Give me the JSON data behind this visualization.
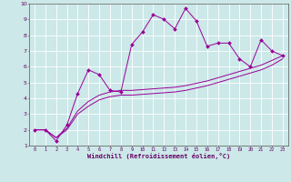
{
  "title": "",
  "xlabel": "Windchill (Refroidissement éolien,°C)",
  "ylabel": "",
  "xlim": [
    -0.5,
    23.5
  ],
  "ylim": [
    1,
    10
  ],
  "xticks": [
    0,
    1,
    2,
    3,
    4,
    5,
    6,
    7,
    8,
    9,
    10,
    11,
    12,
    13,
    14,
    15,
    16,
    17,
    18,
    19,
    20,
    21,
    22,
    23
  ],
  "yticks": [
    1,
    2,
    3,
    4,
    5,
    6,
    7,
    8,
    9,
    10
  ],
  "bg_color": "#cce8e8",
  "line_color": "#990099",
  "grid_color": "#ffffff",
  "series1_x": [
    0,
    1,
    2,
    3,
    4,
    5,
    6,
    7,
    8,
    9,
    10,
    11,
    12,
    13,
    14,
    15,
    16,
    17,
    18,
    19,
    20,
    21,
    22,
    23
  ],
  "series1_y": [
    2.0,
    2.0,
    1.3,
    2.3,
    4.3,
    5.8,
    5.5,
    4.5,
    4.4,
    7.4,
    8.2,
    9.3,
    9.0,
    8.4,
    9.7,
    8.9,
    7.3,
    7.5,
    7.5,
    6.5,
    6.0,
    7.7,
    7.0,
    6.7
  ],
  "series2_x": [
    0,
    1,
    2,
    3,
    4,
    5,
    6,
    7,
    8,
    9,
    10,
    11,
    12,
    13,
    14,
    15,
    16,
    17,
    18,
    19,
    20,
    21,
    22,
    23
  ],
  "series2_y": [
    2.0,
    2.0,
    1.5,
    2.1,
    3.2,
    3.8,
    4.2,
    4.4,
    4.5,
    4.5,
    4.55,
    4.6,
    4.65,
    4.7,
    4.8,
    4.95,
    5.1,
    5.3,
    5.5,
    5.7,
    5.9,
    6.1,
    6.4,
    6.7
  ],
  "series3_x": [
    0,
    1,
    2,
    3,
    4,
    5,
    6,
    7,
    8,
    9,
    10,
    11,
    12,
    13,
    14,
    15,
    16,
    17,
    18,
    19,
    20,
    21,
    22,
    23
  ],
  "series3_y": [
    2.0,
    2.0,
    1.5,
    2.0,
    3.0,
    3.5,
    3.9,
    4.1,
    4.2,
    4.2,
    4.25,
    4.3,
    4.35,
    4.4,
    4.5,
    4.65,
    4.8,
    5.0,
    5.2,
    5.4,
    5.6,
    5.8,
    6.1,
    6.5
  ]
}
